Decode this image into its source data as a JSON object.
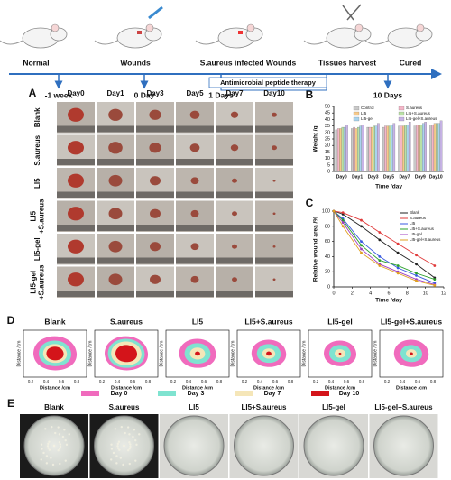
{
  "timeline": {
    "stages": [
      "Normal",
      "Wounds",
      "S.aureus infected Wounds",
      "Tissues harvest",
      "Cured"
    ],
    "times": [
      "-1 week",
      "0 Day",
      "1 Days",
      "10 Days"
    ],
    "therapy": "Antimicrobial peptide therapy"
  },
  "panel_a": {
    "label": "A",
    "columns": [
      "Day0",
      "Day1",
      "Day3",
      "Day5",
      "Day7",
      "Day10"
    ],
    "rows": [
      [
        "Blank"
      ],
      [
        "S.aureus"
      ],
      [
        "LI5"
      ],
      [
        "LI5",
        "+S.aureus"
      ],
      [
        "LI5-gel"
      ],
      [
        "LI5-gel",
        "+S.aureus"
      ]
    ]
  },
  "chart_data": [
    {
      "type": "bar",
      "panel_label": "B",
      "x_label": "Time /day",
      "y_label": "Weight /g",
      "categories": [
        "Day0",
        "Day1",
        "Day3",
        "Day5",
        "Day7",
        "Day9",
        "Day10"
      ],
      "series": [
        {
          "name": "Control",
          "color": "#c8c8c8",
          "values": [
            32,
            33,
            34,
            34,
            35,
            35,
            36
          ]
        },
        {
          "name": "S.aureus",
          "color": "#f4b6c8",
          "values": [
            33,
            34,
            34,
            35,
            35,
            36,
            36
          ]
        },
        {
          "name": "LI5",
          "color": "#f6c98a",
          "values": [
            33,
            33,
            34,
            35,
            35,
            36,
            37
          ]
        },
        {
          "name": "LI5+S.aureus",
          "color": "#b9e0a5",
          "values": [
            34,
            34,
            35,
            35,
            36,
            36,
            37
          ]
        },
        {
          "name": "LI5-gel",
          "color": "#a9d4ee",
          "values": [
            34,
            35,
            35,
            36,
            36,
            37,
            37
          ]
        },
        {
          "name": "LI5-gel+S.aureus",
          "color": "#c7b3e6",
          "values": [
            36,
            36,
            37,
            37,
            38,
            38,
            39
          ]
        }
      ],
      "ylim": [
        0,
        50
      ],
      "yticks": [
        0,
        5,
        10,
        15,
        20,
        25,
        30,
        35,
        40,
        45,
        50
      ]
    },
    {
      "type": "line",
      "panel_label": "C",
      "x_label": "Time /day",
      "y_label": "Relative wound area /%",
      "x": [
        0,
        1,
        3,
        5,
        7,
        9,
        11
      ],
      "series": [
        {
          "name": "Blank",
          "color": "#222222",
          "values": [
            100,
            96,
            80,
            62,
            45,
            30,
            12
          ]
        },
        {
          "name": "S.aureus",
          "color": "#e03a3a",
          "values": [
            100,
            98,
            88,
            72,
            57,
            42,
            28
          ]
        },
        {
          "name": "LI5",
          "color": "#3a5ae0",
          "values": [
            100,
            90,
            60,
            40,
            25,
            15,
            5
          ]
        },
        {
          "name": "LI5+S.aureus",
          "color": "#2aa02a",
          "values": [
            100,
            88,
            55,
            35,
            28,
            18,
            10
          ]
        },
        {
          "name": "LI5-gel",
          "color": "#a040c0",
          "values": [
            100,
            85,
            50,
            30,
            20,
            10,
            3
          ]
        },
        {
          "name": "LI5-gel+S.aureus",
          "color": "#e0a020",
          "values": [
            100,
            80,
            45,
            28,
            18,
            8,
            2
          ]
        }
      ],
      "xlim": [
        0,
        12
      ],
      "xticks": [
        0,
        2,
        4,
        6,
        8,
        10,
        12
      ],
      "ylim": [
        0,
        100
      ],
      "yticks": [
        0,
        20,
        40,
        60,
        80,
        100
      ]
    }
  ],
  "panel_d": {
    "label": "D",
    "titles": [
      "Blank",
      "S.aureus",
      "LI5",
      "LI5+S.aureus",
      "LI5-gel",
      "LI5-gel+S.aureus"
    ],
    "x_label": "Distance /cm",
    "y_label": "Distance /cm",
    "xticks": [
      0.2,
      0.4,
      0.6,
      0.8
    ],
    "legend": [
      {
        "name": "Day 0",
        "color": "#f06bbd"
      },
      {
        "name": "Day 3",
        "color": "#7fe3d0"
      },
      {
        "name": "Day 7",
        "color": "#f5e6b8"
      },
      {
        "name": "Day 10",
        "color": "#d4141a"
      }
    ]
  },
  "panel_e": {
    "label": "E",
    "titles": [
      "Blank",
      "S.aureus",
      "LI5",
      "LI5+S.aureus",
      "LI5-gel",
      "LI5-gel+S.aureus"
    ]
  }
}
